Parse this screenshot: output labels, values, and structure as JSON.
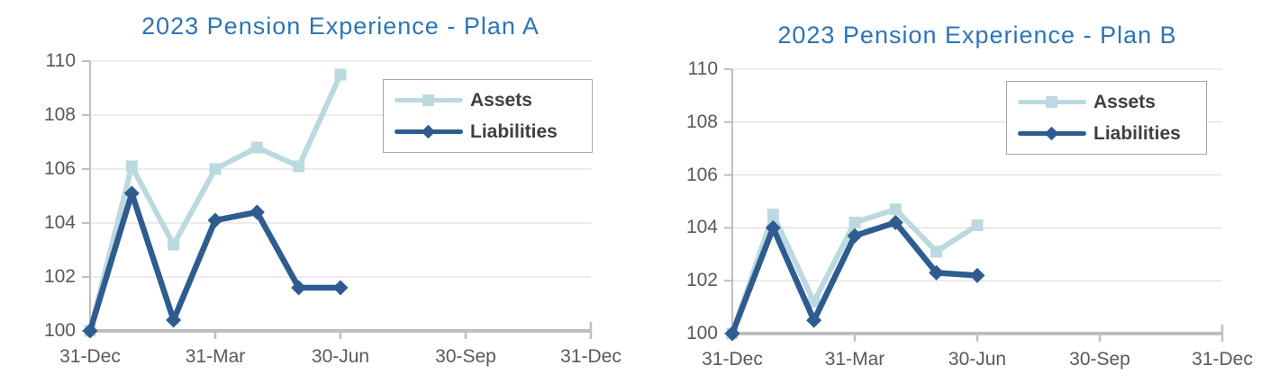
{
  "colors": {
    "title": "#2E74B5",
    "tick_label": "#595959",
    "legend_text": "#404040",
    "gridline": "#D9D9D9",
    "axis": "#BFBFBF",
    "assets": "#BCD9E0",
    "liabilities": "#2E5C8F"
  },
  "chart_data": [
    {
      "type": "line",
      "title": "2023 Pension Experience - Plan A",
      "xlabel": "",
      "ylabel": "",
      "ylim": [
        100,
        110
      ],
      "y_tick_values": [
        100,
        102,
        104,
        106,
        108,
        110
      ],
      "y_tick_labels": [
        "100",
        "102",
        "104",
        "106",
        "108",
        "110"
      ],
      "x_tick_months": [
        0,
        3,
        6,
        9,
        12
      ],
      "x_tick_labels": [
        "31-Dec",
        "31-Mar",
        "30-Jun",
        "30-Sep",
        "31-Dec"
      ],
      "x_total_months": 12,
      "grid": "horizontal",
      "legend_position": "upper-right",
      "x_months": [
        0,
        1,
        2,
        3,
        4,
        5,
        6
      ],
      "series": [
        {
          "name": "Assets",
          "marker": "square",
          "color": "#BCD9E0",
          "values": [
            100,
            106.1,
            103.2,
            106.0,
            106.8,
            106.1,
            109.5
          ]
        },
        {
          "name": "Liabilities",
          "marker": "diamond",
          "color": "#2E5C8F",
          "values": [
            100,
            105.1,
            100.4,
            104.1,
            104.4,
            101.6,
            101.6
          ]
        }
      ]
    },
    {
      "type": "line",
      "title": "2023 Pension Experience - Plan B",
      "xlabel": "",
      "ylabel": "",
      "ylim": [
        100,
        110
      ],
      "y_tick_values": [
        100,
        102,
        104,
        106,
        108,
        110
      ],
      "y_tick_labels": [
        "100",
        "102",
        "104",
        "106",
        "108",
        "110"
      ],
      "x_tick_months": [
        0,
        3,
        6,
        9,
        12
      ],
      "x_tick_labels": [
        "31-Dec",
        "31-Mar",
        "30-Jun",
        "30-Sep",
        "31-Dec"
      ],
      "x_total_months": 12,
      "grid": "horizontal",
      "legend_position": "upper-right",
      "x_months": [
        0,
        1,
        2,
        3,
        4,
        5,
        6
      ],
      "series": [
        {
          "name": "Assets",
          "marker": "square",
          "color": "#BCD9E0",
          "values": [
            100,
            104.5,
            101.2,
            104.2,
            104.7,
            103.1,
            104.1
          ]
        },
        {
          "name": "Liabilities",
          "marker": "diamond",
          "color": "#2E5C8F",
          "values": [
            100,
            104.0,
            100.5,
            103.7,
            104.2,
            102.3,
            102.2
          ]
        }
      ]
    }
  ]
}
